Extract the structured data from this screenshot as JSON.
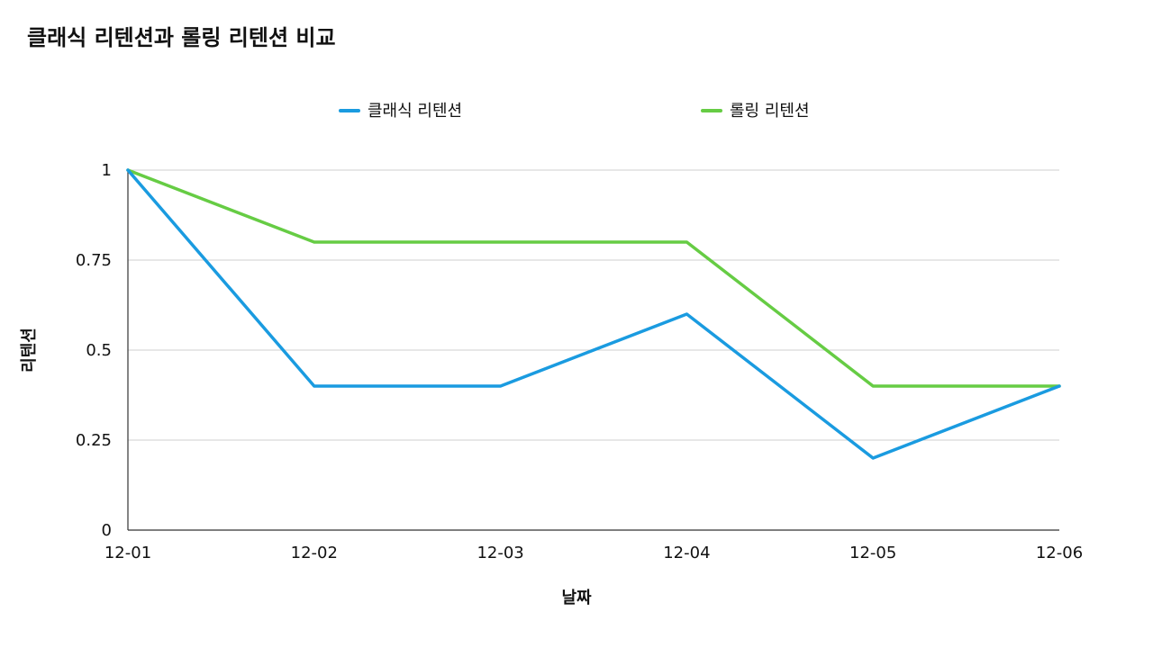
{
  "chart_data": {
    "type": "line",
    "title": "클래식 리텐션과 롤링 리텐션 비교",
    "xlabel": "날짜",
    "ylabel": "리텐션",
    "categories": [
      "12-01",
      "12-02",
      "12-03",
      "12-04",
      "12-05",
      "12-06"
    ],
    "ylim": [
      0,
      1
    ],
    "yticks": [
      0,
      0.25,
      0.5,
      0.75,
      1
    ],
    "ytick_labels": [
      "0",
      "0.25",
      "0.5",
      "0.75",
      "1"
    ],
    "grid": true,
    "legend_position": "top",
    "series": [
      {
        "name": "클래식 리텐션",
        "color": "#1a9be0",
        "values": [
          1.0,
          0.4,
          0.4,
          0.6,
          0.2,
          0.4
        ]
      },
      {
        "name": "롤링 리텐션",
        "color": "#66cc44",
        "values": [
          1.0,
          0.8,
          0.8,
          0.8,
          0.4,
          0.4
        ]
      }
    ]
  }
}
